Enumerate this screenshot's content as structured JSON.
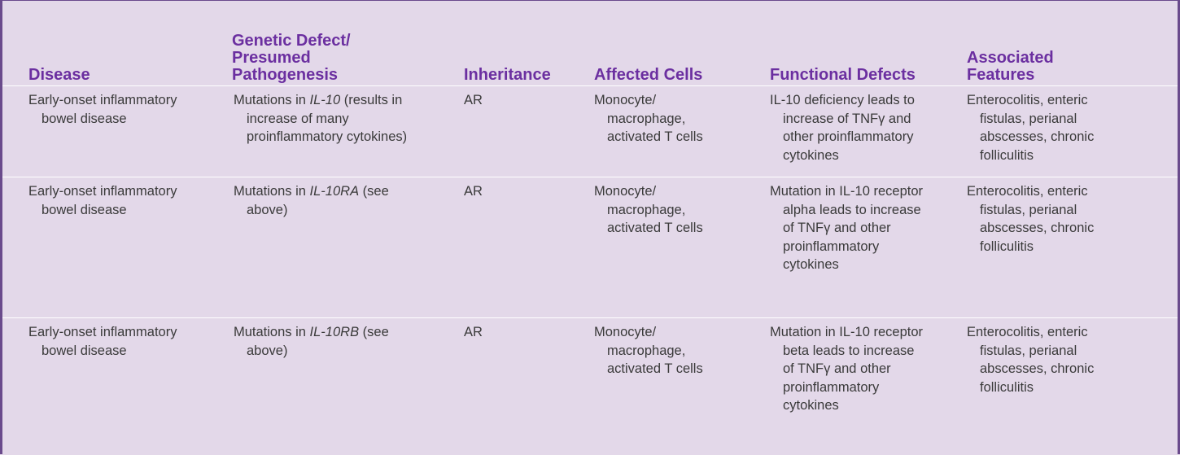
{
  "headers": {
    "disease": "Disease",
    "genetic_l1": "Genetic Defect/",
    "genetic_l2": "Presumed",
    "genetic_l3": "Pathogenesis",
    "inheritance": "Inheritance",
    "affected": "Affected Cells",
    "functional": "Functional Defects",
    "assoc_l1": "Associated",
    "assoc_l2": "Features"
  },
  "rows": [
    {
      "disease": [
        "Early-onset inflammatory",
        "bowel disease"
      ],
      "genetic": {
        "prefix": "Mutations in ",
        "gene": "IL-10",
        "suffix": " (results in",
        "l2": "increase of many",
        "l3": "proinflammatory cytokines)"
      },
      "inheritance": "AR",
      "affected": [
        "Monocyte/",
        "macrophage,",
        "activated T cells"
      ],
      "functional": [
        "IL-10 deficiency leads to",
        "increase of TNFγ and",
        "other proinflammatory",
        "cytokines"
      ],
      "associated": [
        "Enterocolitis, enteric",
        "fistulas, perianal",
        "abscesses, chronic",
        "folliculitis"
      ]
    },
    {
      "disease": [
        "Early-onset inflammatory",
        "bowel disease"
      ],
      "genetic": {
        "prefix": "Mutations in ",
        "gene": "IL-10RA",
        "suffix": " (see",
        "l2": "above)"
      },
      "inheritance": "AR",
      "affected": [
        "Monocyte/",
        "macrophage,",
        "activated T cells"
      ],
      "functional": [
        "Mutation in IL-10 receptor",
        "alpha leads to increase",
        "of TNFγ and other",
        "proinflammatory",
        "cytokines"
      ],
      "associated": [
        "Enterocolitis, enteric",
        "fistulas, perianal",
        "abscesses, chronic",
        "folliculitis"
      ]
    },
    {
      "disease": [
        "Early-onset inflammatory",
        "bowel disease"
      ],
      "genetic": {
        "prefix": "Mutations in ",
        "gene": "IL-10RB",
        "suffix": " (see",
        "l2": "above)"
      },
      "inheritance": "AR",
      "affected": [
        "Monocyte/",
        "macrophage,",
        "activated T cells"
      ],
      "functional": [
        "Mutation in IL-10 receptor",
        "beta leads to increase",
        "of TNFγ and other",
        "proinflammatory",
        "cytokines"
      ],
      "associated": [
        "Enterocolitis, enteric",
        "fistulas, perianal",
        "abscesses, chronic",
        "folliculitis"
      ]
    }
  ]
}
